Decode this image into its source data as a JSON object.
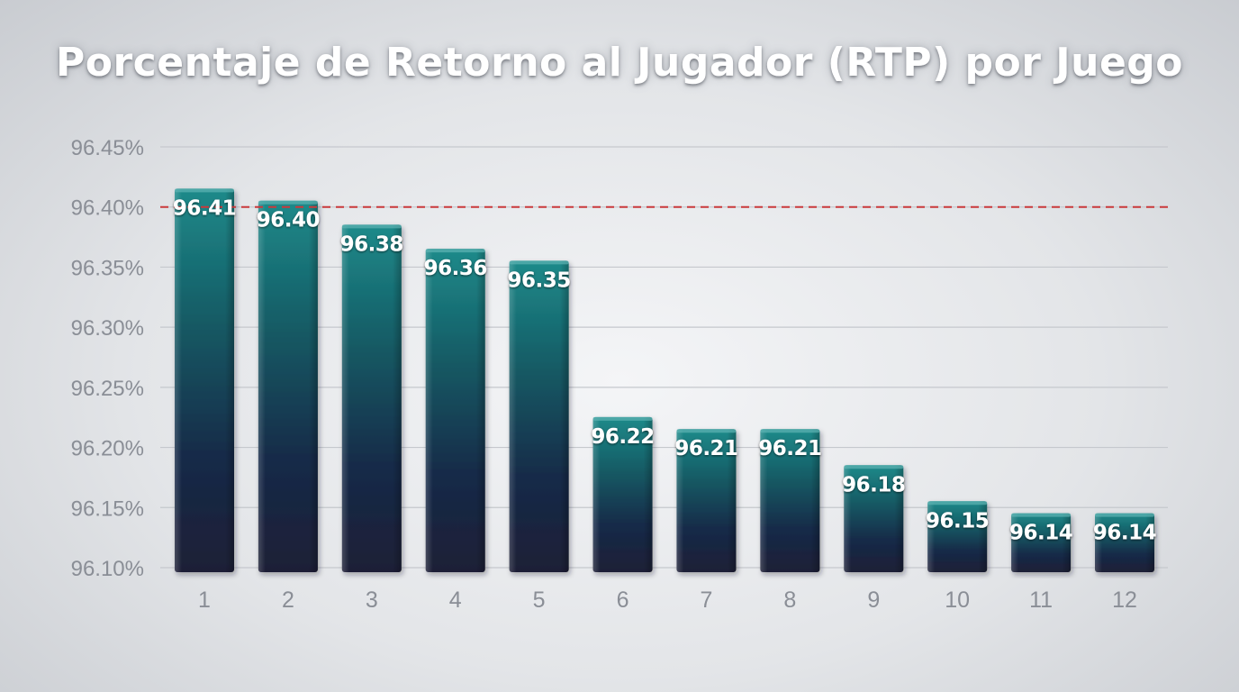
{
  "chart_data": {
    "type": "bar",
    "title": "Porcentaje de Retorno al Jugador (RTP) por Juego",
    "xlabel": "",
    "ylabel": "",
    "categories": [
      "1",
      "2",
      "3",
      "4",
      "5",
      "6",
      "7",
      "8",
      "9",
      "10",
      "11",
      "12"
    ],
    "values": [
      96.41,
      96.4,
      96.38,
      96.36,
      96.35,
      96.22,
      96.21,
      96.21,
      96.18,
      96.15,
      96.14,
      96.14
    ],
    "data_labels": [
      "96.41",
      "96.40",
      "96.38",
      "96.36",
      "96.35",
      "96.22",
      "96.21",
      "96.21",
      "96.18",
      "96.15",
      "96.14",
      "96.14"
    ],
    "ylim": [
      96.1,
      96.45
    ],
    "yticks": [
      96.1,
      96.15,
      96.2,
      96.25,
      96.3,
      96.35,
      96.4,
      96.45
    ],
    "ytick_labels": [
      "96.10%",
      "96.15%",
      "96.20%",
      "96.25%",
      "96.30%",
      "96.35%",
      "96.40%",
      "96.45%"
    ],
    "reference_line": {
      "value": 96.4,
      "style": "dashed",
      "color": "#c9393b"
    },
    "grid": true,
    "legend": "none",
    "colors": {
      "bar_top": "#1e7e80",
      "bar_bottom": "#1b1f3a",
      "grid": "#c5c8cd",
      "ticks": "#8a8e96"
    }
  }
}
